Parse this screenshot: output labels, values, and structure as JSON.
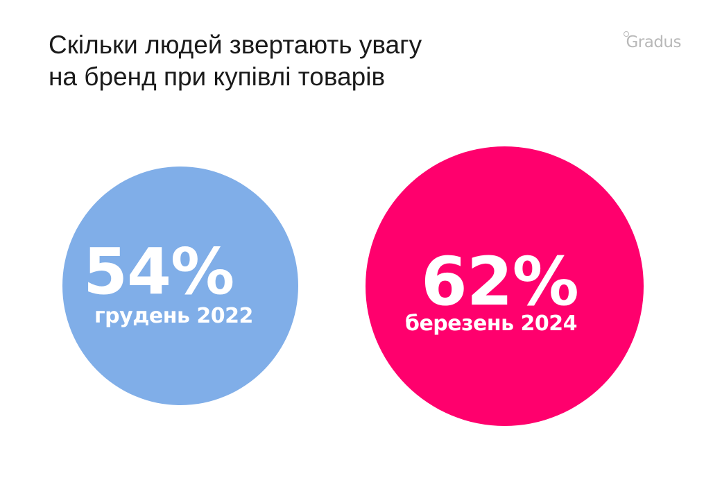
{
  "title": {
    "line1": "Скільки людей звертають увагу",
    "line2": "на бренд при купівлі товарів"
  },
  "logo": {
    "text": "Gradus"
  },
  "chart_data": {
    "type": "bubble",
    "title": "Скільки людей звертають увагу на бренд при купівлі товарів",
    "unit": "%",
    "points": [
      {
        "label": "грудень 2022",
        "value": 54,
        "display": "54%",
        "color": "#80aee8"
      },
      {
        "label": "березень 2024",
        "value": 62,
        "display": "62%",
        "color": "#ff006d"
      }
    ]
  }
}
